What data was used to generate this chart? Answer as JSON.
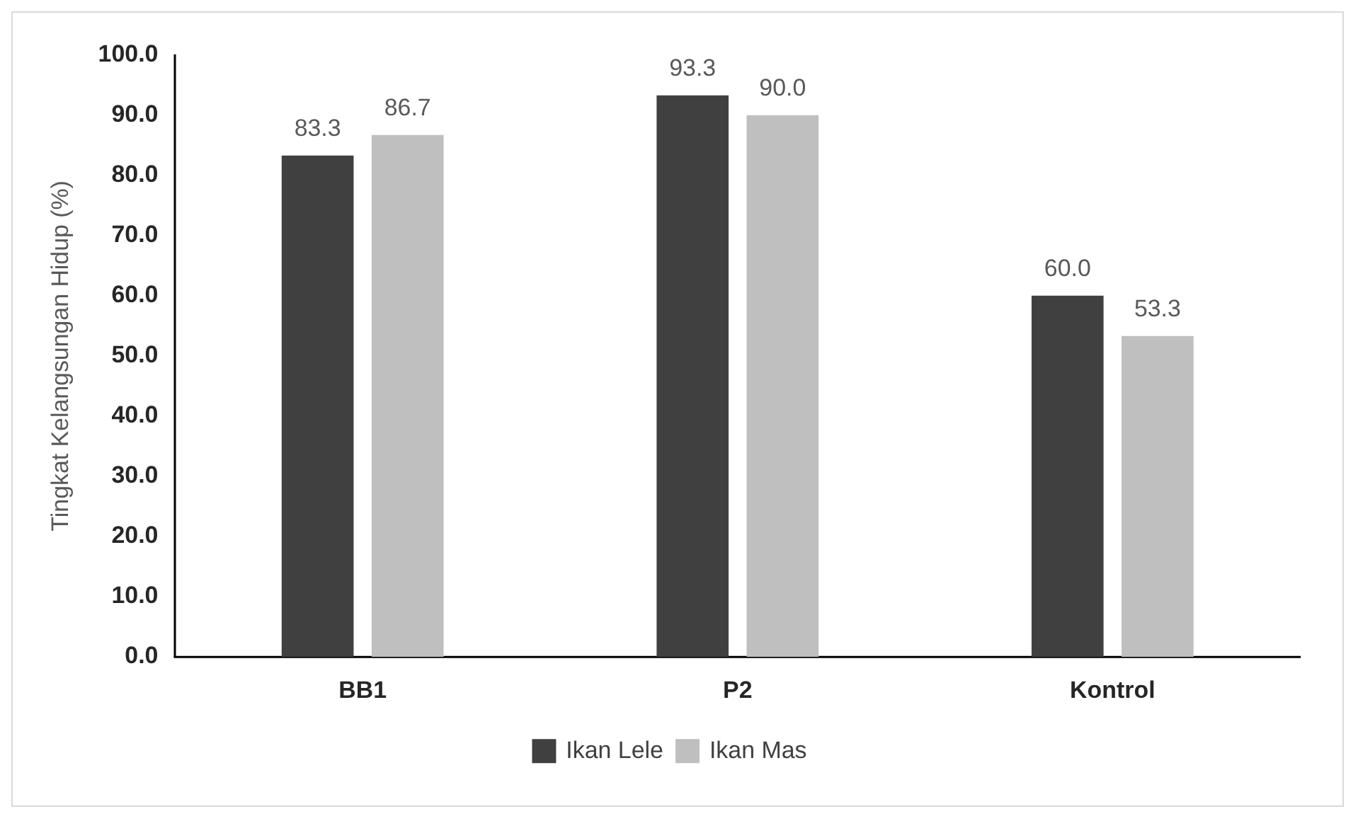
{
  "chart_data": {
    "type": "bar",
    "ylabel": "Tingkat Kelangsungan Hidup (%)",
    "categories": [
      "BB1",
      "P2",
      "Kontrol"
    ],
    "series": [
      {
        "name": "Ikan Lele",
        "color": "#404040",
        "values": [
          83.3,
          93.3,
          60.0
        ],
        "value_labels": [
          "83.3",
          "93.3",
          "60.0"
        ]
      },
      {
        "name": "Ikan Mas",
        "color": "#bfbfbf",
        "values": [
          86.7,
          90.0,
          53.3
        ],
        "value_labels": [
          "86.7",
          "90.0",
          "53.3"
        ]
      }
    ],
    "ylim": [
      0,
      100
    ],
    "yticks": [
      {
        "value": 0,
        "label": "0.0"
      },
      {
        "value": 10,
        "label": "10.0"
      },
      {
        "value": 20,
        "label": "20.0"
      },
      {
        "value": 30,
        "label": "30.0"
      },
      {
        "value": 40,
        "label": "40.0"
      },
      {
        "value": 50,
        "label": "50.0"
      },
      {
        "value": 60,
        "label": "60.0"
      },
      {
        "value": 70,
        "label": "70.0"
      },
      {
        "value": 80,
        "label": "80.0"
      },
      {
        "value": 90,
        "label": "90.0"
      },
      {
        "value": 100,
        "label": "100.0"
      }
    ],
    "grid": false,
    "legend": "bottom"
  }
}
